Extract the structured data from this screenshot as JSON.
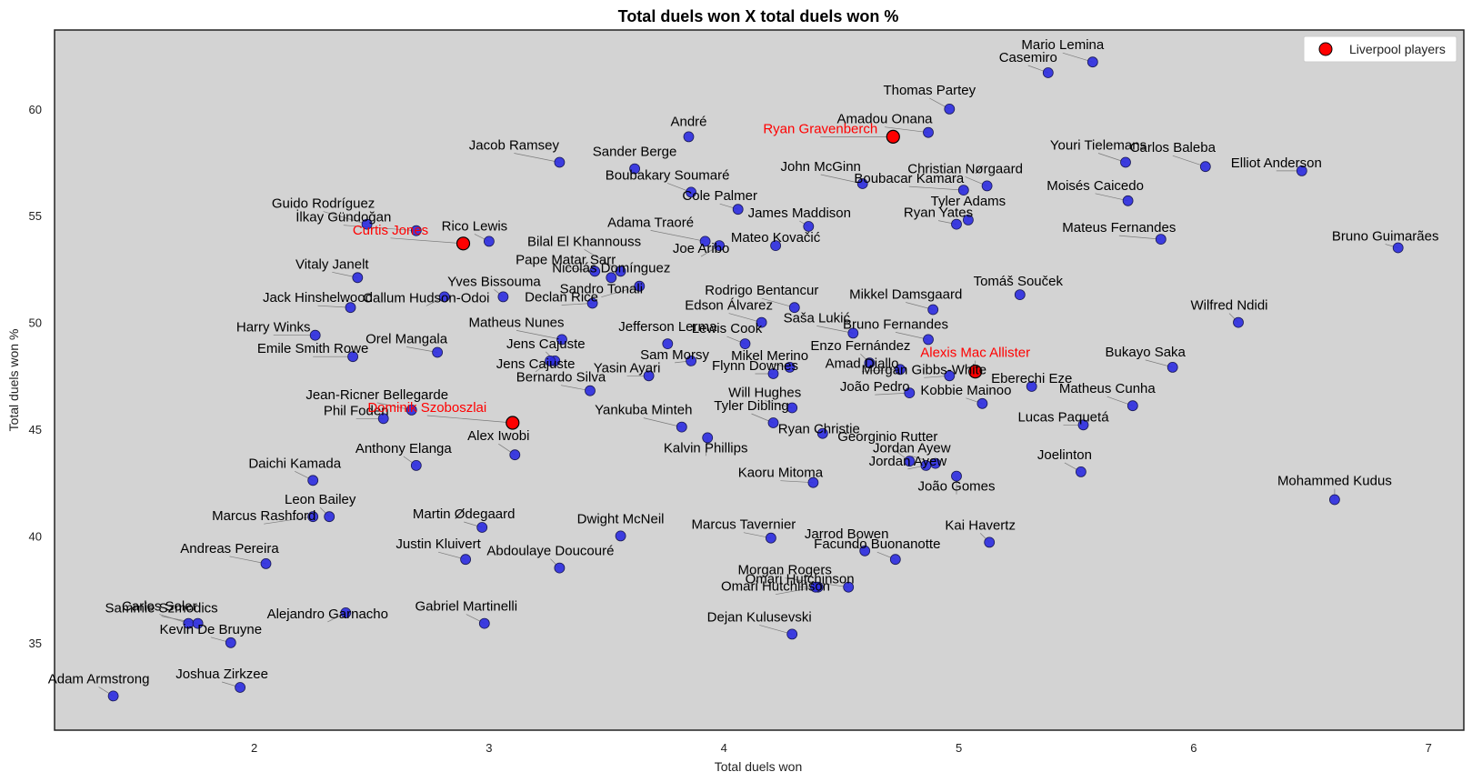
{
  "chart_data": {
    "type": "scatter",
    "title": "Total duels won X total duels won %",
    "xlabel": "Total duels won",
    "ylabel": "Total duels won %",
    "xlim": [
      1.15,
      7.15
    ],
    "ylim": [
      30.9,
      63.7
    ],
    "xticks": [
      "2",
      "3",
      "4",
      "5",
      "6",
      "7"
    ],
    "yticks": [
      "35",
      "40",
      "45",
      "50",
      "55",
      "60"
    ],
    "grid": false,
    "legend": {
      "position": "top-right",
      "entries": [
        "Liverpool players"
      ]
    },
    "colors": {
      "background": "#d3d3d3",
      "point": "#2b2be0",
      "highlight": "#ff0000",
      "label": "#000000",
      "highlight_label": "#ff0000"
    },
    "series": [
      {
        "name": "",
        "points": [
          {
            "label": "Mario Lemina",
            "x": 5.57,
            "y": 62.2
          },
          {
            "label": "Casemiro",
            "x": 5.38,
            "y": 61.7
          },
          {
            "label": "Thomas Partey",
            "x": 4.96,
            "y": 60.0
          },
          {
            "label": "Amadou Onana",
            "x": 4.87,
            "y": 58.9
          },
          {
            "label": "André",
            "x": 3.85,
            "y": 58.7
          },
          {
            "label": "Jacob Ramsey",
            "x": 3.3,
            "y": 57.5
          },
          {
            "label": "Sander Berge",
            "x": 3.62,
            "y": 57.2
          },
          {
            "label": "Boubakary Soumaré",
            "x": 3.86,
            "y": 56.1
          },
          {
            "label": "Cole Palmer",
            "x": 4.06,
            "y": 55.3
          },
          {
            "label": "John McGinn",
            "x": 4.59,
            "y": 56.5
          },
          {
            "label": "Christian Nørgaard",
            "x": 5.12,
            "y": 56.4
          },
          {
            "label": "Boubacar Kamara",
            "x": 5.02,
            "y": 56.2
          },
          {
            "label": "Tyler Adams",
            "x": 5.04,
            "y": 54.8
          },
          {
            "label": "Ryan Yates",
            "x": 4.99,
            "y": 54.6
          },
          {
            "label": "Carlos Baleba",
            "x": 6.05,
            "y": 57.3
          },
          {
            "label": "Youri Tielemans",
            "x": 5.71,
            "y": 57.5
          },
          {
            "label": "Elliot Anderson",
            "x": 6.46,
            "y": 57.1
          },
          {
            "label": "Moisés Caicedo",
            "x": 5.72,
            "y": 55.7
          },
          {
            "label": "Mateus Fernandes",
            "x": 5.86,
            "y": 53.9
          },
          {
            "label": "Bruno Guimarães",
            "x": 6.87,
            "y": 53.5
          },
          {
            "label": "Guido Rodríguez",
            "x": 2.48,
            "y": 54.6
          },
          {
            "label": "İlkay Gündoğan",
            "x": 2.69,
            "y": 54.3
          },
          {
            "label": "Rico Lewis",
            "x": 3.0,
            "y": 53.8
          },
          {
            "label": "Adama Traoré",
            "x": 3.92,
            "y": 53.8
          },
          {
            "label": "James Maddison",
            "x": 4.36,
            "y": 54.5
          },
          {
            "label": "Mateo Kovačić",
            "x": 4.22,
            "y": 53.6
          },
          {
            "label": "Joe Aribo",
            "x": 3.98,
            "y": 53.6
          },
          {
            "label": "Bilal El Khannouss",
            "x": 3.56,
            "y": 52.4
          },
          {
            "label": "Vitaly Janelt",
            "x": 2.44,
            "y": 52.1
          },
          {
            "label": "Pape Matar Sarr",
            "x": 3.45,
            "y": 52.4
          },
          {
            "label": "Nicolás Domínguez",
            "x": 3.52,
            "y": 52.1
          },
          {
            "label": "Sandro Tonali",
            "x": 3.64,
            "y": 51.7
          },
          {
            "label": "Yves Bissouma",
            "x": 3.06,
            "y": 51.2
          },
          {
            "label": "Callum Hudson-Odoi",
            "x": 2.81,
            "y": 51.2
          },
          {
            "label": "Jack Hinshelwood",
            "x": 2.41,
            "y": 50.7
          },
          {
            "label": "Declan Rice",
            "x": 3.44,
            "y": 50.9
          },
          {
            "label": "Tomáš Souček",
            "x": 5.26,
            "y": 51.3
          },
          {
            "label": "Rodrigo Bentancur",
            "x": 4.3,
            "y": 50.7
          },
          {
            "label": "Mikkel Damsgaard",
            "x": 4.89,
            "y": 50.6
          },
          {
            "label": "Wilfred Ndidi",
            "x": 6.19,
            "y": 50.0
          },
          {
            "label": "Edson Álvarez",
            "x": 4.16,
            "y": 50.0
          },
          {
            "label": "Saša Lukić",
            "x": 4.55,
            "y": 49.5
          },
          {
            "label": "Bruno Fernandes",
            "x": 4.87,
            "y": 49.2
          },
          {
            "label": "Harry Winks",
            "x": 2.26,
            "y": 49.4
          },
          {
            "label": "Orel Mangala",
            "x": 2.78,
            "y": 48.6
          },
          {
            "label": "Matheus Nunes",
            "x": 3.31,
            "y": 49.2
          },
          {
            "label": "Jefferson Lerma",
            "x": 3.76,
            "y": 49.0
          },
          {
            "label": "Lewis Cook",
            "x": 4.09,
            "y": 49.0
          },
          {
            "label": "Enzo Fernández",
            "x": 4.62,
            "y": 48.1
          },
          {
            "label": "Emile Smith Rowe",
            "x": 2.42,
            "y": 48.4
          },
          {
            "label": "Jens Cajuste",
            "x": 3.28,
            "y": 48.2
          },
          {
            "label": "Jens Cajuste",
            "x": 3.26,
            "y": 48.2
          },
          {
            "label": "Sam Morsy",
            "x": 3.86,
            "y": 48.2
          },
          {
            "label": "Mikel Merino",
            "x": 4.28,
            "y": 47.9
          },
          {
            "label": "Amad Diallo",
            "x": 4.75,
            "y": 47.8
          },
          {
            "label": "Bukayo Saka",
            "x": 5.91,
            "y": 47.9
          },
          {
            "label": "Yasin Ayari",
            "x": 3.68,
            "y": 47.5
          },
          {
            "label": "Flynn Downes",
            "x": 4.21,
            "y": 47.6
          },
          {
            "label": "Morgan Gibbs-White",
            "x": 4.96,
            "y": 47.5
          },
          {
            "label": "Eberechi Eze",
            "x": 5.31,
            "y": 47.0
          },
          {
            "label": "Bernardo Silva",
            "x": 3.43,
            "y": 46.8
          },
          {
            "label": "João Pedro",
            "x": 4.79,
            "y": 46.7
          },
          {
            "label": "Kobbie Mainoo",
            "x": 5.1,
            "y": 46.2
          },
          {
            "label": "Will Hughes",
            "x": 4.29,
            "y": 46.0
          },
          {
            "label": "Matheus Cunha",
            "x": 5.74,
            "y": 46.1
          },
          {
            "label": "Jean-Ricner Bellegarde",
            "x": 2.67,
            "y": 45.9
          },
          {
            "label": "Phil Foden",
            "x": 2.55,
            "y": 45.5
          },
          {
            "label": "Lucas Paquetá",
            "x": 5.53,
            "y": 45.2
          },
          {
            "label": "Tyler Dibling",
            "x": 4.21,
            "y": 45.3
          },
          {
            "label": "Yankuba Minteh",
            "x": 3.82,
            "y": 45.1
          },
          {
            "label": "Ryan Christie",
            "x": 4.42,
            "y": 44.8
          },
          {
            "label": "Kalvin Phillips",
            "x": 3.93,
            "y": 44.6
          },
          {
            "label": "Alex Iwobi",
            "x": 3.11,
            "y": 43.8
          },
          {
            "label": "Anthony Elanga",
            "x": 2.69,
            "y": 43.3
          },
          {
            "label": "Georginio Rutter",
            "x": 4.79,
            "y": 43.5
          },
          {
            "label": "Jordan Ayew",
            "x": 4.9,
            "y": 43.4
          },
          {
            "label": "Jordan Ayew",
            "x": 4.86,
            "y": 43.3
          },
          {
            "label": "João Gomes",
            "x": 4.99,
            "y": 42.8
          },
          {
            "label": "Joelinton",
            "x": 5.52,
            "y": 43.0
          },
          {
            "label": "Daichi Kamada",
            "x": 2.25,
            "y": 42.6
          },
          {
            "label": "Kaoru Mitoma",
            "x": 4.38,
            "y": 42.5
          },
          {
            "label": "Mohammed Kudus",
            "x": 6.6,
            "y": 41.7
          },
          {
            "label": "Leon Bailey",
            "x": 2.32,
            "y": 40.9
          },
          {
            "label": "Marcus Rashford",
            "x": 2.25,
            "y": 40.9
          },
          {
            "label": "Martin Ødegaard",
            "x": 2.97,
            "y": 40.4
          },
          {
            "label": "Dwight McNeil",
            "x": 3.56,
            "y": 40.0
          },
          {
            "label": "Marcus Tavernier",
            "x": 4.2,
            "y": 39.9
          },
          {
            "label": "Kai Havertz",
            "x": 5.13,
            "y": 39.7
          },
          {
            "label": "Jarrod Bowen",
            "x": 4.6,
            "y": 39.3
          },
          {
            "label": "Justin Kluivert",
            "x": 2.9,
            "y": 38.9
          },
          {
            "label": "Facundo Buonanotte",
            "x": 4.73,
            "y": 38.9
          },
          {
            "label": "Andreas Pereira",
            "x": 2.05,
            "y": 38.7
          },
          {
            "label": "Abdoulaye Doucouré",
            "x": 3.3,
            "y": 38.5
          },
          {
            "label": "Omari Hutchinson",
            "x": 4.4,
            "y": 37.6
          },
          {
            "label": "Morgan Rogers",
            "x": 4.53,
            "y": 37.6
          },
          {
            "label": "Omari Hutchinson",
            "x": 4.39,
            "y": 37.6
          },
          {
            "label": "Alejandro Garnacho",
            "x": 2.39,
            "y": 36.4
          },
          {
            "label": "Carlos Soler",
            "x": 1.72,
            "y": 35.9
          },
          {
            "label": "Sammie Szmodics",
            "x": 1.76,
            "y": 35.9
          },
          {
            "label": "Gabriel Martinelli",
            "x": 2.98,
            "y": 35.9
          },
          {
            "label": "Kevin De Bruyne",
            "x": 1.9,
            "y": 35.0
          },
          {
            "label": "Dejan Kulusevski",
            "x": 4.29,
            "y": 35.4
          },
          {
            "label": "Joshua Zirkzee",
            "x": 1.94,
            "y": 32.9
          },
          {
            "label": "Adam Armstrong",
            "x": 1.4,
            "y": 32.5
          }
        ]
      },
      {
        "name": "Liverpool players",
        "points": [
          {
            "label": "Ryan Gravenberch",
            "x": 4.72,
            "y": 58.7
          },
          {
            "label": "Curtis Jones",
            "x": 2.89,
            "y": 53.7
          },
          {
            "label": "Alexis Mac Allister",
            "x": 5.07,
            "y": 47.7
          },
          {
            "label": "Dominik Szoboszlai",
            "x": 3.1,
            "y": 45.3
          }
        ]
      }
    ]
  }
}
